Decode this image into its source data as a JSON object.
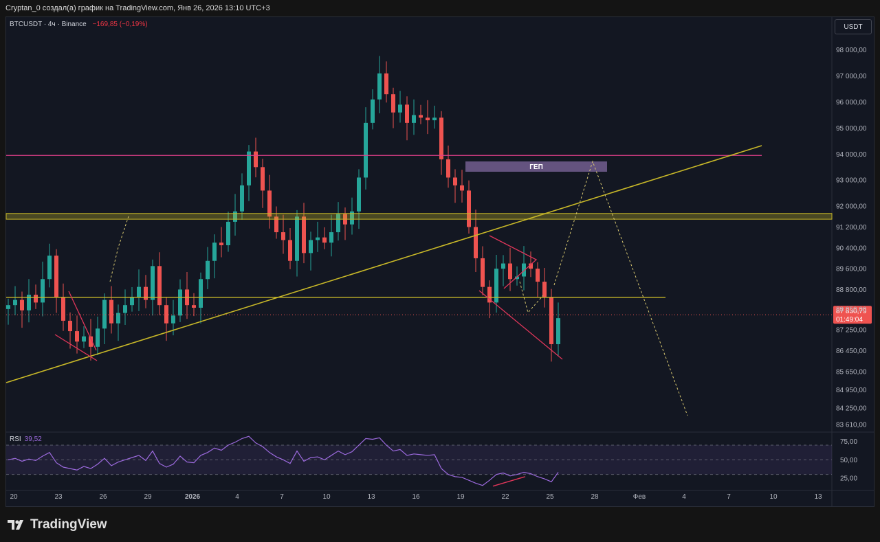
{
  "header": {
    "attribution": "Cryptan_0 создал(а) график на TradingView.com, Янв 26, 2026 13:10 UTC+3"
  },
  "symbol": {
    "name": "BTCUSDT · 4ч · Binance",
    "change": "−169,85 (−0,19%)"
  },
  "currency_button": "USDT",
  "footer": {
    "brand": "TradingView"
  },
  "colors": {
    "background": "#131722",
    "up": "#26a69a",
    "down": "#ef5350",
    "trendline": "#c8b828",
    "resistance": "#e0408a",
    "rsi": "#9c6ade"
  },
  "chart_data": {
    "type": "candlestick",
    "symbol": "BTCUSDT",
    "timeframe": "4ч",
    "exchange": "Binance",
    "y_ticks": [
      "98 000,00",
      "97 000,00",
      "96 000,00",
      "95 000,00",
      "94 000,00",
      "93 000,00",
      "92 000,00",
      "91 200,00",
      "90 400,00",
      "89 600,00",
      "88 800,00",
      "88 050,00",
      "87 250,00",
      "86 450,00",
      "85 650,00",
      "84 950,00",
      "84 250,00",
      "83 610,00"
    ],
    "ylim": [
      83350,
      98600
    ],
    "x_ticks": [
      "20",
      "23",
      "26",
      "29",
      "2026",
      "4",
      "7",
      "10",
      "13",
      "16",
      "19",
      "22",
      "25",
      "28",
      "Фев",
      "4",
      "7",
      "10",
      "13"
    ],
    "close_series": [
      88200,
      88400,
      88000,
      88600,
      88300,
      89200,
      90100,
      88500,
      87600,
      87200,
      86800,
      87000,
      86600,
      87300,
      88400,
      87500,
      87900,
      88200,
      88500,
      88900,
      88400,
      89700,
      88200,
      87500,
      87800,
      88800,
      88200,
      88100,
      89200,
      89900,
      90600,
      90500,
      91400,
      91800,
      92800,
      94100,
      93500,
      92600,
      91600,
      91000,
      90700,
      89900,
      91600,
      90200,
      90700,
      90800,
      90600,
      91000,
      91700,
      91300,
      91800,
      93100,
      95200,
      96100,
      97100,
      96300,
      95600,
      95900,
      95200,
      95500,
      95400,
      95300,
      95400,
      93800,
      93100,
      92800,
      92600,
      91200,
      90000,
      88900,
      88300,
      89600,
      89800,
      89200,
      89300,
      89800,
      89600,
      89100,
      88500,
      86700,
      87700
    ],
    "last_price": "87 830,79",
    "countdown": "01:49:04",
    "annotations": {
      "gap_label": "ГЕП",
      "resistance_level": 93950,
      "zone_upper": [
        91500,
        91720
      ],
      "zone_lower": 88500,
      "last_price_level": 87830
    },
    "rsi": {
      "label": "RSI",
      "value": "39,52",
      "ticks": [
        "75,00",
        "50,00",
        "25,00"
      ],
      "levels": [
        70,
        50,
        30
      ],
      "ylim": [
        10,
        85
      ],
      "values": [
        50,
        52,
        48,
        51,
        49,
        55,
        60,
        46,
        40,
        38,
        36,
        41,
        38,
        44,
        52,
        42,
        47,
        50,
        53,
        56,
        49,
        62,
        45,
        40,
        44,
        55,
        47,
        46,
        56,
        60,
        66,
        63,
        70,
        74,
        79,
        82,
        73,
        68,
        60,
        54,
        50,
        45,
        62,
        48,
        53,
        54,
        50,
        56,
        62,
        57,
        61,
        70,
        79,
        78,
        80,
        70,
        62,
        64,
        56,
        58,
        57,
        56,
        57,
        38,
        30,
        27,
        26,
        22,
        18,
        15,
        22,
        30,
        32,
        28,
        30,
        33,
        31,
        27,
        24,
        20,
        33
      ],
      "divergence": [
        [
          2.5,
          14
        ],
        [
          7.2,
          27
        ]
      ]
    }
  }
}
